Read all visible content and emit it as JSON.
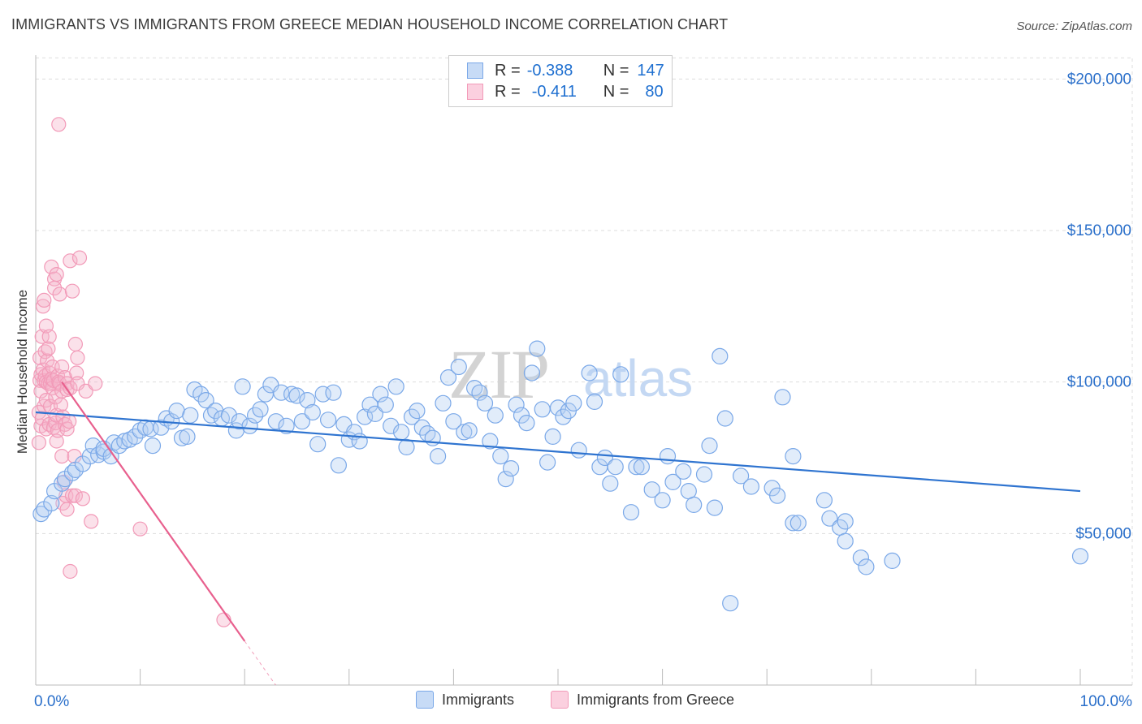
{
  "title": "IMMIGRANTS VS IMMIGRANTS FROM GREECE MEDIAN HOUSEHOLD INCOME CORRELATION CHART",
  "source": "Source: ZipAtlas.com",
  "watermark": {
    "zip": "ZIP",
    "atlas": "atlas"
  },
  "legend": {
    "rows": [
      {
        "r_label": "R =",
        "r_value": "-0.388",
        "n_label": "N =",
        "n_value": "147",
        "color": "#7aa8e8"
      },
      {
        "r_label": "R =",
        "r_value": "-0.411",
        "n_label": "N =",
        "n_value": "80",
        "color": "#f29ab8"
      }
    ]
  },
  "bottom_legend": {
    "immigrants": "Immigrants",
    "greece": "Immigrants from Greece"
  },
  "colors": {
    "blue": "#7aa8e8",
    "blue_line": "#2f74d0",
    "pink": "#f29ab8",
    "pink_line": "#e8608e",
    "axis_text": "#2a6fca"
  },
  "chart_data": {
    "type": "scatter",
    "title": "IMMIGRANTS VS IMMIGRANTS FROM GREECE MEDIAN HOUSEHOLD INCOME CORRELATION CHART",
    "xlabel": "",
    "ylabel": "Median Household Income",
    "x_tick_labels": {
      "min": "0.0%",
      "max": "100.0%"
    },
    "xlim": [
      0,
      100
    ],
    "ylim": [
      0,
      210000
    ],
    "y_ticks": [
      {
        "value": 50000,
        "label": "$50,000"
      },
      {
        "value": 100000,
        "label": "$100,000"
      },
      {
        "value": 150000,
        "label": "$150,000"
      },
      {
        "value": 200000,
        "label": "$200,000"
      }
    ],
    "legend_position": "top-center",
    "series": [
      {
        "name": "Immigrants",
        "r": -0.388,
        "n": 147,
        "trend": {
          "x": [
            0,
            100
          ],
          "y": [
            90000,
            64000
          ]
        },
        "points": [
          [
            0.5,
            56500
          ],
          [
            0.8,
            58000
          ],
          [
            1.5,
            60000
          ],
          [
            1.8,
            64000
          ],
          [
            2.5,
            66500
          ],
          [
            2.8,
            68000
          ],
          [
            3.5,
            70000
          ],
          [
            3.8,
            71000
          ],
          [
            4.5,
            73000
          ],
          [
            5.2,
            75500
          ],
          [
            5.5,
            79000
          ],
          [
            6.0,
            76000
          ],
          [
            6.5,
            77000
          ],
          [
            6.5,
            78000
          ],
          [
            7.2,
            75500
          ],
          [
            7.5,
            80000
          ],
          [
            8.0,
            79000
          ],
          [
            8.5,
            80500
          ],
          [
            9.0,
            81000
          ],
          [
            9.5,
            82000
          ],
          [
            10.0,
            84000
          ],
          [
            10.5,
            85000
          ],
          [
            11.0,
            84500
          ],
          [
            11.2,
            79000
          ],
          [
            12.0,
            85000
          ],
          [
            12.5,
            88000
          ],
          [
            13.0,
            87000
          ],
          [
            13.5,
            90500
          ],
          [
            14.0,
            81500
          ],
          [
            14.5,
            82000
          ],
          [
            14.8,
            89000
          ],
          [
            15.2,
            97500
          ],
          [
            15.8,
            96000
          ],
          [
            16.3,
            94000
          ],
          [
            16.8,
            89000
          ],
          [
            17.2,
            90500
          ],
          [
            17.8,
            88000
          ],
          [
            18.5,
            89000
          ],
          [
            19.2,
            84000
          ],
          [
            19.5,
            87000
          ],
          [
            19.8,
            98500
          ],
          [
            20.5,
            85500
          ],
          [
            21.0,
            89000
          ],
          [
            21.5,
            91000
          ],
          [
            22.0,
            96000
          ],
          [
            22.5,
            99000
          ],
          [
            23.0,
            87000
          ],
          [
            23.5,
            96500
          ],
          [
            24.0,
            85500
          ],
          [
            24.5,
            96000
          ],
          [
            25.0,
            95500
          ],
          [
            25.5,
            87000
          ],
          [
            26.0,
            94000
          ],
          [
            26.5,
            90000
          ],
          [
            27.0,
            79500
          ],
          [
            27.5,
            96000
          ],
          [
            28.0,
            87500
          ],
          [
            28.5,
            96500
          ],
          [
            29.0,
            72500
          ],
          [
            29.5,
            86000
          ],
          [
            30.0,
            81000
          ],
          [
            30.5,
            83500
          ],
          [
            31.0,
            80500
          ],
          [
            31.5,
            88500
          ],
          [
            32.0,
            92500
          ],
          [
            32.5,
            89500
          ],
          [
            33.0,
            96000
          ],
          [
            33.5,
            92500
          ],
          [
            34.0,
            85500
          ],
          [
            34.5,
            98500
          ],
          [
            35.0,
            83500
          ],
          [
            35.5,
            78500
          ],
          [
            36.0,
            88500
          ],
          [
            36.5,
            90500
          ],
          [
            37.0,
            85000
          ],
          [
            37.5,
            83000
          ],
          [
            38.0,
            81500
          ],
          [
            38.5,
            75500
          ],
          [
            39.0,
            93000
          ],
          [
            39.5,
            101500
          ],
          [
            40.0,
            87000
          ],
          [
            40.5,
            105000
          ],
          [
            41.0,
            83500
          ],
          [
            41.5,
            84000
          ],
          [
            42.0,
            98000
          ],
          [
            42.5,
            96500
          ],
          [
            43.0,
            93000
          ],
          [
            43.5,
            80500
          ],
          [
            44.0,
            89000
          ],
          [
            44.5,
            75500
          ],
          [
            45.0,
            68000
          ],
          [
            45.5,
            71500
          ],
          [
            46.0,
            92500
          ],
          [
            46.5,
            89000
          ],
          [
            47.0,
            86500
          ],
          [
            47.5,
            103000
          ],
          [
            48.0,
            111000
          ],
          [
            48.5,
            91000
          ],
          [
            49.0,
            73500
          ],
          [
            49.5,
            82000
          ],
          [
            50.0,
            91500
          ],
          [
            50.5,
            88500
          ],
          [
            51.0,
            90500
          ],
          [
            51.5,
            93000
          ],
          [
            52.0,
            77500
          ],
          [
            53.0,
            103000
          ],
          [
            53.5,
            93500
          ],
          [
            54.0,
            72000
          ],
          [
            54.5,
            75000
          ],
          [
            55.0,
            66500
          ],
          [
            55.5,
            72000
          ],
          [
            56.0,
            102500
          ],
          [
            57.0,
            57000
          ],
          [
            57.5,
            72000
          ],
          [
            58.0,
            72000
          ],
          [
            59.0,
            64500
          ],
          [
            60.0,
            61000
          ],
          [
            60.5,
            75500
          ],
          [
            61.0,
            67000
          ],
          [
            62.0,
            70500
          ],
          [
            62.5,
            64000
          ],
          [
            63.0,
            59500
          ],
          [
            64.0,
            69500
          ],
          [
            64.5,
            79000
          ],
          [
            65.0,
            58500
          ],
          [
            65.5,
            108500
          ],
          [
            66.0,
            88000
          ],
          [
            66.5,
            27000
          ],
          [
            67.5,
            69000
          ],
          [
            68.5,
            65500
          ],
          [
            70.5,
            65000
          ],
          [
            71.0,
            62500
          ],
          [
            71.5,
            95000
          ],
          [
            72.5,
            75500
          ],
          [
            72.5,
            53500
          ],
          [
            73.0,
            53500
          ],
          [
            75.5,
            61000
          ],
          [
            76.0,
            55000
          ],
          [
            77.0,
            52000
          ],
          [
            77.5,
            47500
          ],
          [
            77.5,
            54000
          ],
          [
            79.0,
            42000
          ],
          [
            79.5,
            39000
          ],
          [
            82.0,
            41000
          ],
          [
            100.0,
            42500
          ]
        ]
      },
      {
        "name": "Immigrants from Greece",
        "r": -0.411,
        "n": 80,
        "trend": {
          "x": [
            2.5,
            20.0
          ],
          "y": [
            100000,
            14500
          ]
        },
        "points": [
          [
            0.3,
            80000
          ],
          [
            0.3,
            90000
          ],
          [
            0.4,
            100500
          ],
          [
            0.4,
            108000
          ],
          [
            0.5,
            85500
          ],
          [
            0.5,
            97000
          ],
          [
            0.5,
            102500
          ],
          [
            0.6,
            115000
          ],
          [
            0.6,
            88000
          ],
          [
            0.7,
            104000
          ],
          [
            0.7,
            125000
          ],
          [
            0.8,
            92000
          ],
          [
            0.8,
            100500
          ],
          [
            0.8,
            127000
          ],
          [
            0.9,
            102000
          ],
          [
            0.9,
            110000
          ],
          [
            1.0,
            84500
          ],
          [
            1.0,
            94000
          ],
          [
            1.0,
            100000
          ],
          [
            1.0,
            118500
          ],
          [
            1.1,
            107000
          ],
          [
            1.2,
            99500
          ],
          [
            1.2,
            111000
          ],
          [
            1.3,
            86000
          ],
          [
            1.3,
            103000
          ],
          [
            1.3,
            115000
          ],
          [
            1.4,
            92000
          ],
          [
            1.4,
            99500
          ],
          [
            1.5,
            101000
          ],
          [
            1.5,
            138000
          ],
          [
            1.6,
            98000
          ],
          [
            1.6,
            105000
          ],
          [
            1.7,
            85000
          ],
          [
            1.7,
            100500
          ],
          [
            1.8,
            134000
          ],
          [
            1.8,
            131000
          ],
          [
            1.9,
            86500
          ],
          [
            1.9,
            95000
          ],
          [
            2.0,
            80500
          ],
          [
            2.0,
            89000
          ],
          [
            2.0,
            135500
          ],
          [
            2.1,
            102000
          ],
          [
            2.1,
            84000
          ],
          [
            2.2,
            100000
          ],
          [
            2.2,
            185000
          ],
          [
            2.3,
            129000
          ],
          [
            2.3,
            99500
          ],
          [
            2.4,
            92500
          ],
          [
            2.5,
            105000
          ],
          [
            2.5,
            75500
          ],
          [
            2.5,
            97000
          ],
          [
            2.6,
            60000
          ],
          [
            2.6,
            88500
          ],
          [
            2.7,
            67000
          ],
          [
            2.8,
            101500
          ],
          [
            2.8,
            86000
          ],
          [
            2.9,
            62500
          ],
          [
            3.0,
            84500
          ],
          [
            3.0,
            99500
          ],
          [
            3.0,
            97500
          ],
          [
            3.0,
            58000
          ],
          [
            3.2,
            87000
          ],
          [
            3.3,
            98000
          ],
          [
            3.3,
            140000
          ],
          [
            3.3,
            37500
          ],
          [
            3.5,
            62500
          ],
          [
            3.5,
            130000
          ],
          [
            3.7,
            75500
          ],
          [
            3.8,
            112500
          ],
          [
            3.8,
            62500
          ],
          [
            3.9,
            103000
          ],
          [
            4.0,
            108000
          ],
          [
            4.0,
            99500
          ],
          [
            4.2,
            141000
          ],
          [
            4.5,
            61500
          ],
          [
            4.8,
            97000
          ],
          [
            5.3,
            54000
          ],
          [
            5.7,
            99500
          ],
          [
            10.0,
            51500
          ],
          [
            18.0,
            21500
          ]
        ]
      }
    ]
  }
}
